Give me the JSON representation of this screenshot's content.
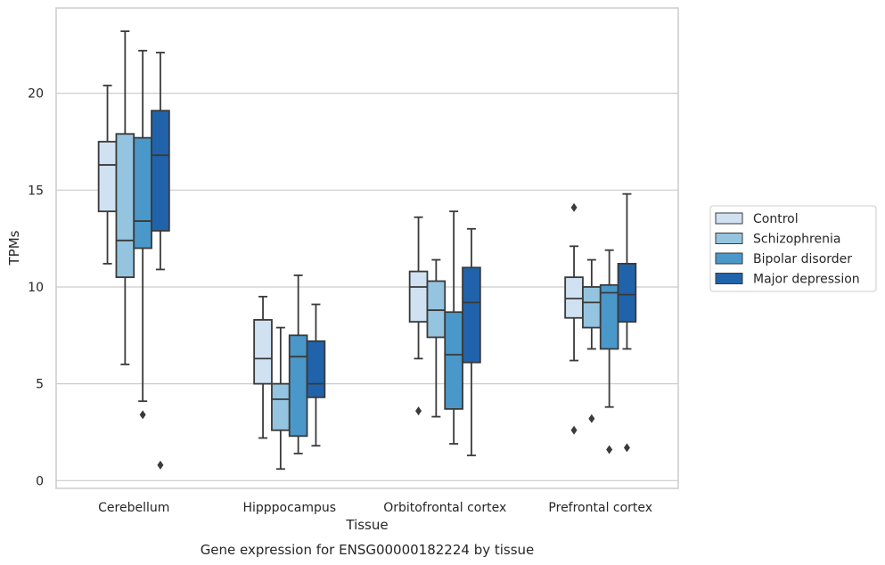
{
  "chart_data": {
    "type": "box",
    "caption": "Gene expression for ENSG00000182224 by tissue",
    "xlabel": "Tissue",
    "ylabel": "TPMs",
    "ylim": [
      -0.4,
      24.4
    ],
    "yticks": [
      0,
      5,
      10,
      15,
      20
    ],
    "grid": "horizontal",
    "legend_position": "right",
    "categories": [
      "Cerebellum",
      "Hipppocampus",
      "Orbitofrontal cortex",
      "Prefrontal cortex"
    ],
    "series": [
      {
        "name": "Control",
        "color": "#d0e1f2",
        "boxes": [
          {
            "whislo": 11.2,
            "q1": 13.9,
            "med": 16.3,
            "q3": 17.5,
            "whishi": 20.4,
            "fliers": []
          },
          {
            "whislo": 2.2,
            "q1": 5.0,
            "med": 6.3,
            "q3": 8.3,
            "whishi": 9.5,
            "fliers": []
          },
          {
            "whislo": 6.3,
            "q1": 8.2,
            "med": 10.0,
            "q3": 10.8,
            "whishi": 13.6,
            "fliers": [
              3.6
            ]
          },
          {
            "whislo": 6.2,
            "q1": 8.4,
            "med": 9.4,
            "q3": 10.5,
            "whishi": 12.1,
            "fliers": [
              14.1,
              2.6
            ]
          }
        ]
      },
      {
        "name": "Schizophrenia",
        "color": "#94c4df",
        "boxes": [
          {
            "whislo": 6.0,
            "q1": 10.5,
            "med": 12.4,
            "q3": 17.9,
            "whishi": 23.2,
            "fliers": []
          },
          {
            "whislo": 0.6,
            "q1": 2.6,
            "med": 4.2,
            "q3": 5.0,
            "whishi": 7.9,
            "fliers": []
          },
          {
            "whislo": 3.3,
            "q1": 7.4,
            "med": 8.8,
            "q3": 10.3,
            "whishi": 11.4,
            "fliers": []
          },
          {
            "whislo": 6.8,
            "q1": 7.9,
            "med": 9.2,
            "q3": 10.0,
            "whishi": 11.4,
            "fliers": [
              3.2
            ]
          }
        ]
      },
      {
        "name": "Bipolar disorder",
        "color": "#4a98c9",
        "boxes": [
          {
            "whislo": 4.1,
            "q1": 12.0,
            "med": 13.4,
            "q3": 17.7,
            "whishi": 22.2,
            "fliers": [
              3.4
            ]
          },
          {
            "whislo": 1.4,
            "q1": 2.3,
            "med": 6.4,
            "q3": 7.5,
            "whishi": 10.6,
            "fliers": []
          },
          {
            "whislo": 1.9,
            "q1": 3.7,
            "med": 6.5,
            "q3": 8.7,
            "whishi": 13.9,
            "fliers": []
          },
          {
            "whislo": 3.8,
            "q1": 6.8,
            "med": 9.7,
            "q3": 10.1,
            "whishi": 11.9,
            "fliers": [
              1.6
            ]
          }
        ]
      },
      {
        "name": "Major depression",
        "color": "#2163aa",
        "boxes": [
          {
            "whislo": 10.9,
            "q1": 12.9,
            "med": 16.8,
            "q3": 19.1,
            "whishi": 22.1,
            "fliers": [
              0.8
            ]
          },
          {
            "whislo": 1.8,
            "q1": 4.3,
            "med": 5.0,
            "q3": 7.2,
            "whishi": 9.1,
            "fliers": []
          },
          {
            "whislo": 1.3,
            "q1": 6.1,
            "med": 9.2,
            "q3": 11.0,
            "whishi": 13.0,
            "fliers": []
          },
          {
            "whislo": 6.8,
            "q1": 8.2,
            "med": 9.6,
            "q3": 11.2,
            "whishi": 14.8,
            "fliers": [
              1.7
            ]
          }
        ]
      }
    ]
  }
}
